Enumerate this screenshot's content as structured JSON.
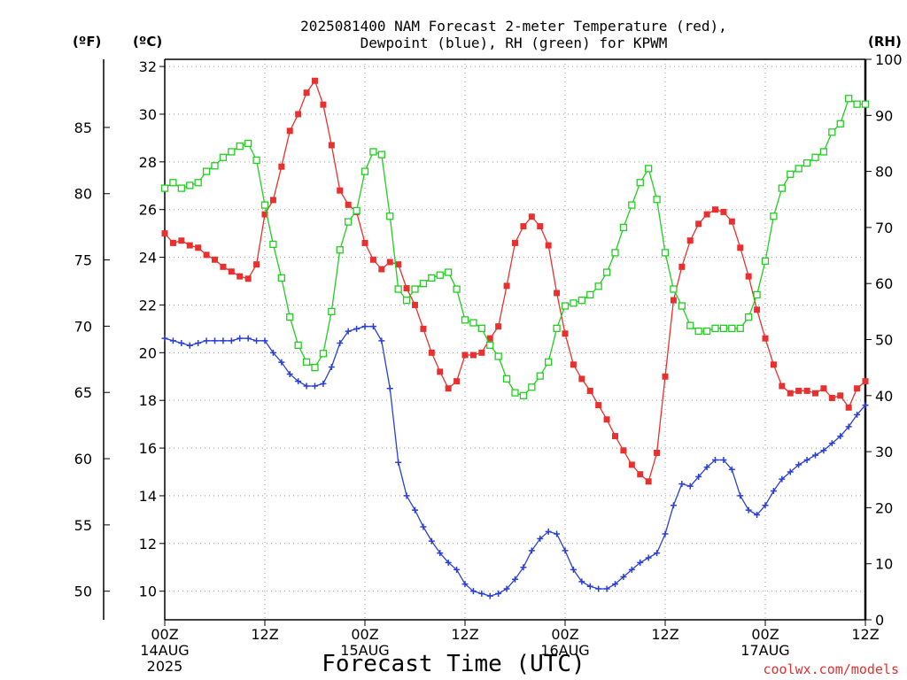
{
  "chart_data": {
    "type": "line",
    "title_lines": [
      "2025081400 NAM Forecast 2-meter Temperature (red),",
      "Dewpoint (blue), RH (green) for KPWM"
    ],
    "xlabel": "Forecast Time (UTC)",
    "credit": "coolwx.com/models",
    "unit_labels": {
      "fahrenheit": "(ºF)",
      "celsius": "(ºC)",
      "rh": "(RH)"
    },
    "x_ticks": [
      {
        "h": 0,
        "lines": [
          "00Z",
          "14AUG",
          "2025"
        ]
      },
      {
        "h": 12,
        "lines": [
          "12Z"
        ]
      },
      {
        "h": 24,
        "lines": [
          "00Z",
          "15AUG"
        ]
      },
      {
        "h": 36,
        "lines": [
          "12Z"
        ]
      },
      {
        "h": 48,
        "lines": [
          "00Z",
          "16AUG"
        ]
      },
      {
        "h": 60,
        "lines": [
          "12Z"
        ]
      },
      {
        "h": 72,
        "lines": [
          "00Z",
          "17AUG"
        ]
      },
      {
        "h": 84,
        "lines": [
          "12Z"
        ]
      }
    ],
    "xlim": [
      0,
      84
    ],
    "ylim_c": [
      8.8,
      32.3
    ],
    "ylim_rh": [
      0,
      100
    ],
    "celsius_ticks": [
      10,
      12,
      14,
      16,
      18,
      20,
      22,
      24,
      26,
      28,
      30,
      32
    ],
    "fahrenheit_ticks": [
      50,
      55,
      60,
      65,
      70,
      75,
      80,
      85
    ],
    "rh_ticks": [
      0,
      10,
      20,
      30,
      40,
      50,
      60,
      70,
      80,
      90,
      100
    ],
    "grid": true,
    "colors": {
      "temperature": "#e8312f",
      "dewpoint": "#2a3fd6",
      "rh": "#1fcf1f"
    },
    "series": [
      {
        "name": "Temperature (red)",
        "unit": "C",
        "marker": "filled-square",
        "hours": [
          0,
          1,
          2,
          3,
          4,
          5,
          6,
          7,
          8,
          9,
          10,
          11,
          12,
          13,
          14,
          15,
          16,
          17,
          18,
          19,
          20,
          21,
          22,
          23,
          24,
          25,
          26,
          27,
          28,
          29,
          30,
          31,
          32,
          33,
          34,
          35,
          36,
          37,
          38,
          39,
          40,
          41,
          42,
          43,
          44,
          45,
          46,
          47,
          48,
          49,
          50,
          51,
          52,
          53,
          54,
          55,
          56,
          57,
          58,
          59,
          60,
          61,
          62,
          63,
          64,
          65,
          66,
          67,
          68,
          69,
          70,
          71,
          72,
          73,
          74,
          75,
          76,
          77,
          78,
          79,
          80,
          81,
          82,
          83,
          84
        ],
        "values": [
          25.0,
          24.6,
          24.7,
          24.5,
          24.4,
          24.1,
          23.9,
          23.6,
          23.4,
          23.2,
          23.1,
          23.7,
          25.8,
          26.4,
          27.8,
          29.3,
          30.0,
          30.9,
          31.4,
          30.4,
          28.7,
          26.8,
          26.2,
          25.9,
          24.6,
          23.9,
          23.5,
          23.8,
          23.7,
          22.7,
          22.0,
          21.0,
          20.0,
          19.2,
          18.5,
          18.8,
          19.9,
          19.9,
          20.0,
          20.6,
          21.1,
          22.8,
          24.6,
          25.3,
          25.7,
          25.3,
          24.5,
          22.5,
          20.8,
          19.5,
          18.9,
          18.4,
          17.8,
          17.2,
          16.5,
          15.9,
          15.3,
          14.9,
          14.6,
          15.8,
          19.0,
          22.2,
          23.6,
          24.7,
          25.4,
          25.8,
          26.0,
          25.9,
          25.5,
          24.4,
          23.2,
          21.8,
          20.6,
          19.5,
          18.6,
          18.3,
          18.4,
          18.4,
          18.3,
          18.5,
          18.1,
          18.2,
          17.7,
          18.5,
          18.8
        ]
      },
      {
        "name": "Dewpoint (blue)",
        "unit": "C",
        "marker": "plus",
        "hours": [
          0,
          1,
          2,
          3,
          4,
          5,
          6,
          7,
          8,
          9,
          10,
          11,
          12,
          13,
          14,
          15,
          16,
          17,
          18,
          19,
          20,
          21,
          22,
          23,
          24,
          25,
          26,
          27,
          28,
          29,
          30,
          31,
          32,
          33,
          34,
          35,
          36,
          37,
          38,
          39,
          40,
          41,
          42,
          43,
          44,
          45,
          46,
          47,
          48,
          49,
          50,
          51,
          52,
          53,
          54,
          55,
          56,
          57,
          58,
          59,
          60,
          61,
          62,
          63,
          64,
          65,
          66,
          67,
          68,
          69,
          70,
          71,
          72,
          73,
          74,
          75,
          76,
          77,
          78,
          79,
          80,
          81,
          82,
          83,
          84
        ],
        "values": [
          20.6,
          20.5,
          20.4,
          20.3,
          20.4,
          20.5,
          20.5,
          20.5,
          20.5,
          20.6,
          20.6,
          20.5,
          20.5,
          20.0,
          19.6,
          19.1,
          18.8,
          18.6,
          18.6,
          18.7,
          19.4,
          20.4,
          20.9,
          21.0,
          21.1,
          21.1,
          20.5,
          18.5,
          15.4,
          14.0,
          13.4,
          12.7,
          12.1,
          11.6,
          11.2,
          10.9,
          10.3,
          10.0,
          9.9,
          9.8,
          9.9,
          10.1,
          10.5,
          11.0,
          11.7,
          12.2,
          12.5,
          12.4,
          11.7,
          10.9,
          10.4,
          10.2,
          10.1,
          10.1,
          10.3,
          10.6,
          10.9,
          11.2,
          11.4,
          11.6,
          12.4,
          13.6,
          14.5,
          14.4,
          14.8,
          15.2,
          15.5,
          15.5,
          15.1,
          14.0,
          13.4,
          13.2,
          13.6,
          14.2,
          14.7,
          15.0,
          15.3,
          15.5,
          15.7,
          15.9,
          16.2,
          16.5,
          16.9,
          17.4,
          17.8
        ]
      },
      {
        "name": "RH (green)",
        "unit": "%",
        "marker": "open-square",
        "hours": [
          0,
          1,
          2,
          3,
          4,
          5,
          6,
          7,
          8,
          9,
          10,
          11,
          12,
          13,
          14,
          15,
          16,
          17,
          18,
          19,
          20,
          21,
          22,
          23,
          24,
          25,
          26,
          27,
          28,
          29,
          30,
          31,
          32,
          33,
          34,
          35,
          36,
          37,
          38,
          39,
          40,
          41,
          42,
          43,
          44,
          45,
          46,
          47,
          48,
          49,
          50,
          51,
          52,
          53,
          54,
          55,
          56,
          57,
          58,
          59,
          60,
          61,
          62,
          63,
          64,
          65,
          66,
          67,
          68,
          69,
          70,
          71,
          72,
          73,
          74,
          75,
          76,
          77,
          78,
          79,
          80,
          81,
          82,
          83,
          84
        ],
        "values": [
          77.0,
          78.0,
          77.0,
          77.5,
          78.0,
          80.0,
          81.0,
          82.5,
          83.5,
          84.5,
          85.0,
          82.0,
          74.0,
          67.0,
          61.0,
          54.0,
          49.0,
          46.0,
          45.0,
          47.5,
          55.0,
          66.0,
          71.0,
          73.0,
          80.0,
          83.5,
          83.0,
          72.0,
          59.0,
          57.0,
          59.0,
          60.0,
          61.0,
          61.5,
          62.0,
          59.0,
          53.5,
          53.0,
          52.0,
          49.0,
          47.0,
          43.0,
          40.5,
          40.0,
          41.5,
          43.5,
          46.0,
          52.0,
          56.0,
          56.5,
          57.0,
          58.0,
          59.5,
          62.0,
          65.5,
          70.0,
          74.0,
          78.0,
          80.5,
          75.0,
          65.5,
          59.0,
          56.0,
          52.5,
          51.5,
          51.5,
          52.0,
          52.0,
          52.0,
          52.0,
          54.0,
          58.0,
          64.0,
          72.0,
          77.0,
          79.5,
          80.5,
          81.5,
          82.5,
          83.5,
          87.0,
          88.5,
          93.0,
          92.0,
          92.0
        ]
      }
    ]
  }
}
